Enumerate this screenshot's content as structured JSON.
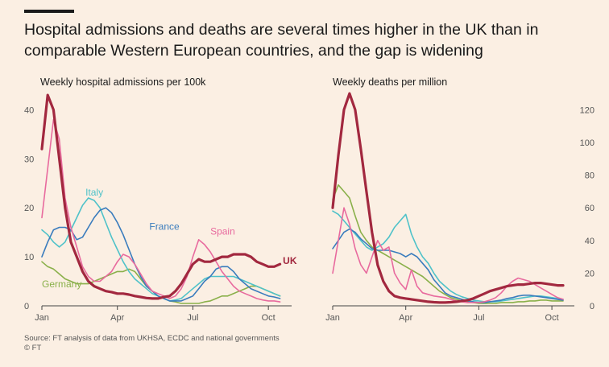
{
  "title": "Hospital admissions and deaths are several times higher in the UK than in comparable Western European countries, and the gap is widening",
  "source": "Source: FT analysis of data from UKHSA, ECDC and national governments",
  "credit": "© FT",
  "colors": {
    "UK": "#a2283f",
    "Italy": "#4fc2c9",
    "France": "#3a7cbd",
    "Spain": "#e86a9e",
    "Germany": "#8ab04a",
    "background": "#fbefe3"
  },
  "chart_data": [
    {
      "type": "line",
      "title": "Weekly hospital admissions per 100k",
      "x_ticks": [
        "Jan",
        "Apr",
        "Jul",
        "Oct"
      ],
      "xlim": [
        0,
        43
      ],
      "yticks": [
        0,
        10,
        20,
        30,
        40
      ],
      "ylim": [
        0,
        44
      ],
      "y_axis": "left",
      "series": [
        {
          "name": "UK",
          "label_x": 41.5,
          "label_y": 8.5,
          "x": [
            0,
            1,
            2,
            3,
            4,
            5,
            6,
            7,
            8,
            9,
            10,
            11,
            12,
            13,
            14,
            15,
            16,
            17,
            18,
            19,
            20,
            21,
            22,
            23,
            24,
            25,
            26,
            27,
            28,
            29,
            30,
            31,
            32,
            33,
            34,
            35,
            36,
            37,
            38,
            39,
            40,
            41
          ],
          "values": [
            32,
            43,
            40,
            30,
            20,
            13,
            10,
            7,
            5,
            4,
            3.5,
            3,
            2.8,
            2.5,
            2.5,
            2.3,
            2,
            1.8,
            1.6,
            1.5,
            1.5,
            1.8,
            2,
            3,
            4.5,
            6.5,
            8.5,
            9.5,
            9,
            9,
            9.5,
            10,
            10,
            10.5,
            10.5,
            10.5,
            10,
            9,
            8.5,
            8,
            8,
            8.5
          ]
        },
        {
          "name": "Italy",
          "label_x": 7.5,
          "label_y": 22.5,
          "x": [
            0,
            1,
            2,
            3,
            4,
            5,
            6,
            7,
            8,
            9,
            10,
            11,
            12,
            13,
            14,
            15,
            16,
            17,
            18,
            19,
            20,
            21,
            22,
            23,
            24,
            25,
            26,
            27,
            28,
            29,
            30,
            31,
            32,
            33,
            34,
            35,
            36,
            37,
            38,
            39,
            40,
            41
          ],
          "values": [
            15.5,
            14.5,
            13,
            12,
            13,
            15.5,
            18,
            20.5,
            22,
            21.5,
            20,
            17,
            14,
            11.5,
            9,
            7,
            5.5,
            4.5,
            3.5,
            2.5,
            2,
            1.5,
            1,
            1.2,
            1.5,
            2.5,
            3.5,
            4.5,
            5.5,
            6,
            6,
            6,
            6,
            6,
            5.5,
            5,
            4.5,
            4,
            3.5,
            3,
            2.5,
            2
          ]
        },
        {
          "name": "France",
          "label_x": 18.5,
          "label_y": 15.5,
          "x": [
            0,
            1,
            2,
            3,
            4,
            5,
            6,
            7,
            8,
            9,
            10,
            11,
            12,
            13,
            14,
            15,
            16,
            17,
            18,
            19,
            20,
            21,
            22,
            23,
            24,
            25,
            26,
            27,
            28,
            29,
            30,
            31,
            32,
            33,
            34,
            35,
            36,
            37,
            38,
            39,
            40,
            41
          ],
          "values": [
            10,
            13,
            15.5,
            16,
            16,
            15.5,
            13.5,
            14,
            16,
            18,
            19.5,
            20,
            19,
            17,
            14.5,
            11.5,
            8.5,
            6,
            4,
            3,
            2,
            1.5,
            1,
            1,
            1,
            1.5,
            2,
            3.5,
            5,
            6,
            7.5,
            8,
            8,
            7,
            5.5,
            4.5,
            3.5,
            3,
            2.5,
            2,
            1.8,
            1.5
          ]
        },
        {
          "name": "Spain",
          "label_x": 29,
          "label_y": 14.5,
          "x": [
            0,
            1,
            2,
            3,
            4,
            5,
            6,
            7,
            8,
            9,
            10,
            11,
            12,
            13,
            14,
            15,
            16,
            17,
            18,
            19,
            20,
            21,
            22,
            23,
            24,
            25,
            26,
            27,
            28,
            29,
            30,
            31,
            32,
            33,
            34,
            35,
            36,
            37,
            38,
            39,
            40,
            41
          ],
          "values": [
            18,
            28,
            38,
            34,
            22,
            16,
            12,
            8,
            6,
            5,
            5,
            6,
            7,
            9,
            10.5,
            10,
            8.5,
            6.5,
            4.5,
            3,
            2.5,
            2,
            1.5,
            2,
            3.5,
            6,
            10,
            13.5,
            12.5,
            11,
            9,
            7,
            5.5,
            4,
            3,
            2.5,
            2,
            1.5,
            1.2,
            1,
            1,
            0.8
          ]
        },
        {
          "name": "Germany",
          "label_x": 0,
          "label_y": 3.8,
          "x": [
            0,
            1,
            2,
            3,
            4,
            5,
            6,
            7,
            8,
            9,
            10,
            11,
            12,
            13,
            14,
            15,
            16,
            17,
            18,
            19,
            20,
            21,
            22,
            23,
            24,
            25,
            26,
            27,
            28,
            29,
            30,
            31,
            32,
            33,
            34,
            35,
            36,
            37,
            38,
            39,
            40,
            41
          ],
          "values": [
            9,
            8,
            7.5,
            6.5,
            5.5,
            5,
            4.5,
            4.5,
            4.5,
            5,
            5.5,
            6,
            6.5,
            7,
            7,
            7.5,
            7,
            5.5,
            4,
            3,
            2,
            1.5,
            1,
            0.8,
            0.5,
            0.5,
            0.5,
            0.5,
            0.8,
            1,
            1.5,
            2,
            2,
            2.5,
            3,
            3.5,
            4,
            4,
            3.5,
            3,
            2.5,
            2
          ]
        }
      ]
    },
    {
      "type": "line",
      "title": "Weekly deaths per million",
      "x_ticks": [
        "Jan",
        "Apr",
        "Jul",
        "Oct"
      ],
      "xlim": [
        0,
        43
      ],
      "yticks": [
        0,
        20,
        40,
        60,
        80,
        100,
        120
      ],
      "ylim": [
        0,
        132
      ],
      "y_axis": "right",
      "series": [
        {
          "name": "UK",
          "x": [
            0,
            1,
            2,
            3,
            4,
            5,
            6,
            7,
            8,
            9,
            10,
            11,
            12,
            13,
            14,
            15,
            16,
            17,
            18,
            19,
            20,
            21,
            22,
            23,
            24,
            25,
            26,
            27,
            28,
            29,
            30,
            31,
            32,
            33,
            34,
            35,
            36,
            37,
            38,
            39,
            40,
            41
          ],
          "values": [
            60,
            92,
            120,
            130,
            120,
            96,
            70,
            45,
            25,
            15,
            9,
            6,
            5,
            4.5,
            4,
            3.5,
            3,
            2.5,
            2.2,
            2,
            2,
            2.2,
            2.5,
            3,
            3.5,
            4.5,
            6,
            7.5,
            9,
            10,
            11,
            12,
            12.5,
            13,
            13,
            13.5,
            14,
            14,
            13.5,
            13,
            12.5,
            12.5
          ]
        },
        {
          "name": "Italy",
          "x": [
            0,
            1,
            2,
            3,
            4,
            5,
            6,
            7,
            8,
            9,
            10,
            11,
            12,
            13,
            14,
            15,
            16,
            17,
            18,
            19,
            20,
            21,
            22,
            23,
            24,
            25,
            26,
            27,
            28,
            29,
            30,
            31,
            32,
            33,
            34,
            35,
            36,
            37,
            38,
            39,
            40,
            41
          ],
          "values": [
            58,
            56,
            52,
            48,
            44,
            40,
            36,
            34,
            36,
            38,
            42,
            48,
            52,
            56,
            44,
            36,
            30,
            26,
            20,
            15,
            12,
            9,
            7,
            5.5,
            4.5,
            3.5,
            3,
            2.5,
            2.5,
            2.5,
            3,
            3.5,
            4,
            4.5,
            5,
            5.5,
            6,
            6,
            5.5,
            5,
            4.5,
            4
          ]
        },
        {
          "name": "France",
          "x": [
            0,
            1,
            2,
            3,
            4,
            5,
            6,
            7,
            8,
            9,
            10,
            11,
            12,
            13,
            14,
            15,
            16,
            17,
            18,
            19,
            20,
            21,
            22,
            23,
            24,
            25,
            26,
            27,
            28,
            29,
            30,
            31,
            32,
            33,
            34,
            35,
            36,
            37,
            38,
            39,
            40,
            41
          ],
          "values": [
            35,
            40,
            45,
            47,
            45,
            41,
            38,
            35,
            34,
            34,
            34,
            33,
            32,
            30,
            32,
            30,
            26,
            22,
            16,
            12,
            8,
            6,
            5,
            4,
            3,
            2.5,
            2,
            2,
            2.5,
            3,
            3.5,
            4.5,
            5,
            6,
            6.5,
            6.5,
            6,
            5.5,
            5,
            4.5,
            4,
            3.5
          ]
        },
        {
          "name": "Spain",
          "x": [
            0,
            1,
            2,
            3,
            4,
            5,
            6,
            7,
            8,
            9,
            10,
            11,
            12,
            13,
            14,
            15,
            16,
            17,
            18,
            19,
            20,
            21,
            22,
            23,
            24,
            25,
            26,
            27,
            28,
            29,
            30,
            31,
            32,
            33,
            34,
            35,
            36,
            37,
            38,
            39,
            40,
            41
          ],
          "values": [
            20,
            40,
            60,
            50,
            35,
            25,
            20,
            30,
            40,
            34,
            36,
            20,
            14,
            10,
            22,
            12,
            8,
            7,
            6,
            5.5,
            5,
            4,
            3,
            2.5,
            2,
            2,
            2,
            2.5,
            3.5,
            5,
            8,
            12,
            15,
            17,
            16,
            15,
            13,
            11,
            9,
            7,
            5,
            4
          ]
        },
        {
          "name": "Germany",
          "x": [
            0,
            1,
            2,
            3,
            4,
            5,
            6,
            7,
            8,
            9,
            10,
            11,
            12,
            13,
            14,
            15,
            16,
            17,
            18,
            19,
            20,
            21,
            22,
            23,
            24,
            25,
            26,
            27,
            28,
            29,
            30,
            31,
            32,
            33,
            34,
            35,
            36,
            37,
            38,
            39,
            40,
            41
          ],
          "values": [
            65,
            74,
            70,
            66,
            55,
            45,
            40,
            36,
            34,
            32,
            30,
            28,
            26,
            24,
            22,
            20,
            18,
            15,
            12,
            9,
            7,
            5,
            4,
            3,
            2.5,
            2,
            1.5,
            1.5,
            1.5,
            1.5,
            2,
            2,
            2,
            2.5,
            2.5,
            3,
            3,
            3.5,
            3.5,
            3,
            3,
            3
          ]
        }
      ]
    }
  ]
}
